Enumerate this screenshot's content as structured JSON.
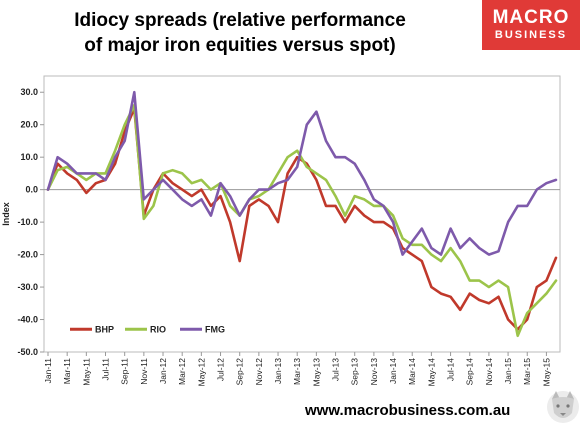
{
  "header": {
    "title_line1": "Idiocy spreads (relative performance",
    "title_line2": "of major iron equities versus spot)"
  },
  "brand": {
    "line1": "MACRO",
    "line2": "BUSINESS",
    "website": "www.macrobusiness.com.au",
    "color": "#e03a37"
  },
  "chart_data": {
    "type": "line",
    "title": "Idiocy spreads (relative performance of major iron equities versus spot)",
    "ylabel": "Index",
    "xlabel": "",
    "ylim": [
      -50,
      35
    ],
    "yticks": [
      -50,
      -40,
      -30,
      -20,
      -10,
      0,
      10,
      20,
      30
    ],
    "ytick_labels": [
      "-50.0",
      "-40.0",
      "-30.0",
      "-20.0",
      "-10.0",
      "0.0",
      "10.0",
      "20.0",
      "30.0"
    ],
    "xticks": [
      "Jan-11",
      "Mar-11",
      "May-11",
      "Jul-11",
      "Sep-11",
      "Nov-11",
      "Jan-12",
      "Mar-12",
      "May-12",
      "Jul-12",
      "Sep-12",
      "Nov-12",
      "Jan-13",
      "Mar-13",
      "May-13",
      "Jul-13",
      "Sep-13",
      "Nov-13",
      "Jan-14",
      "Mar-14",
      "May-14",
      "Jul-14",
      "Sep-14",
      "Nov-14",
      "Jan-15",
      "Mar-15",
      "May-15"
    ],
    "grid": false,
    "legend": "bottom-left",
    "x": [
      "Jan-11",
      "Feb-11",
      "Mar-11",
      "Apr-11",
      "May-11",
      "Jun-11",
      "Jul-11",
      "Aug-11",
      "Sep-11",
      "Oct-11",
      "Nov-11",
      "Dec-11",
      "Jan-12",
      "Feb-12",
      "Mar-12",
      "Apr-12",
      "May-12",
      "Jun-12",
      "Jul-12",
      "Aug-12",
      "Sep-12",
      "Oct-12",
      "Nov-12",
      "Dec-12",
      "Jan-13",
      "Feb-13",
      "Mar-13",
      "Apr-13",
      "May-13",
      "Jun-13",
      "Jul-13",
      "Aug-13",
      "Sep-13",
      "Oct-13",
      "Nov-13",
      "Dec-13",
      "Jan-14",
      "Feb-14",
      "Mar-14",
      "Apr-14",
      "May-14",
      "Jun-14",
      "Jul-14",
      "Aug-14",
      "Sep-14",
      "Oct-14",
      "Nov-14",
      "Dec-14",
      "Jan-15",
      "Feb-15",
      "Mar-15",
      "Apr-15",
      "May-15",
      "Jun-15"
    ],
    "series": [
      {
        "name": "BHP",
        "color": "#c0392b",
        "values": [
          0,
          8,
          5,
          3,
          -1,
          2,
          3,
          8,
          18,
          25,
          -8,
          0,
          5,
          2,
          0,
          -2,
          0,
          -5,
          -2,
          -10,
          -22,
          -5,
          -3,
          -5,
          -10,
          5,
          10,
          8,
          3,
          -5,
          -5,
          -10,
          -5,
          -8,
          -10,
          -10,
          -12,
          -18,
          -20,
          -22,
          -30,
          -32,
          -33,
          -37,
          -32,
          -34,
          -35,
          -33,
          -40,
          -43,
          -40,
          -30,
          -28,
          -21
        ]
      },
      {
        "name": "RIO",
        "color": "#9cc44a",
        "values": [
          0,
          6,
          7,
          5,
          3,
          5,
          5,
          12,
          20,
          26,
          -9,
          -5,
          5,
          6,
          5,
          2,
          3,
          0,
          2,
          -5,
          -8,
          -3,
          -2,
          0,
          5,
          10,
          12,
          7,
          5,
          3,
          -2,
          -8,
          -2,
          -3,
          -5,
          -5,
          -8,
          -15,
          -17,
          -17,
          -20,
          -22,
          -18,
          -22,
          -28,
          -28,
          -30,
          -28,
          -30,
          -45,
          -38,
          -35,
          -32,
          -28
        ]
      },
      {
        "name": "FMG",
        "color": "#7e5aab",
        "values": [
          0,
          10,
          8,
          5,
          5,
          5,
          3,
          10,
          15,
          30,
          -3,
          0,
          3,
          0,
          -3,
          -5,
          -3,
          -8,
          2,
          -2,
          -8,
          -3,
          0,
          0,
          2,
          3,
          7,
          20,
          24,
          15,
          10,
          10,
          8,
          3,
          -3,
          -5,
          -10,
          -20,
          -16,
          -12,
          -18,
          -20,
          -12,
          -18,
          -15,
          -18,
          -20,
          -19,
          -10,
          -5,
          -5,
          0,
          2,
          3
        ]
      }
    ]
  }
}
